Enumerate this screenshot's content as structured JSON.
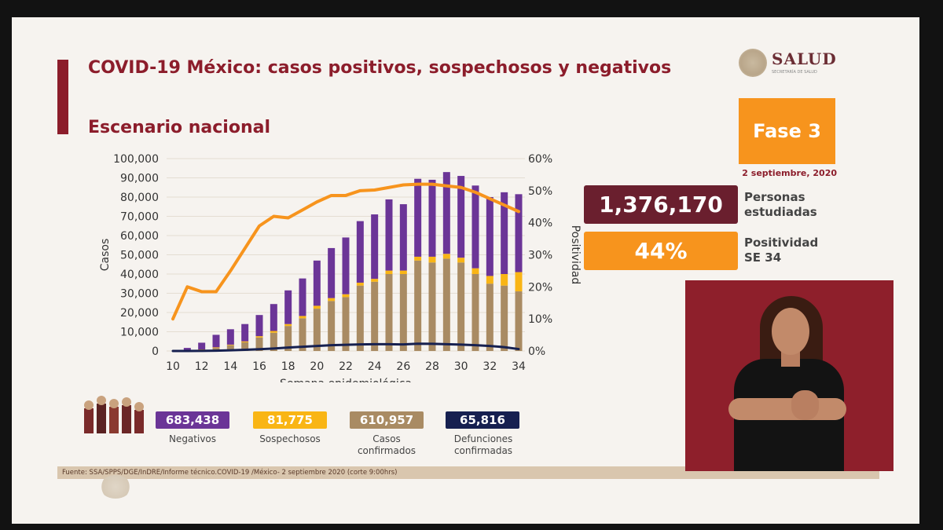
{
  "title": "COVID-19 México: casos positivos, sospechosos y negativos",
  "subtitle": "Escenario nacional",
  "logo": {
    "name": "SALUD",
    "tagline": "SECRETARÍA DE SALUD"
  },
  "fase": "Fase 3",
  "fecha": "2 septiembre, 2020",
  "stats": [
    {
      "value": "1,376,170",
      "label_line1": "Personas",
      "label_line2": "estudiadas",
      "color": "#6a1f2e"
    },
    {
      "value": "44%",
      "label_line1": "Positividad",
      "label_line2": "SE 34",
      "color": "#f7941d"
    }
  ],
  "legend": [
    {
      "value": "683,438",
      "label_line1": "Negativos",
      "label_line2": "",
      "color": "#6b3597"
    },
    {
      "value": "81,775",
      "label_line1": "Sospechosos",
      "label_line2": "",
      "color": "#f9b515"
    },
    {
      "value": "610,957",
      "label_line1": "Casos",
      "label_line2": "confirmados",
      "color": "#a98b63"
    },
    {
      "value": "65,816",
      "label_line1": "Defunciones",
      "label_line2": "confirmadas",
      "color": "#162050"
    }
  ],
  "source": "Fuente: SSA/SPPS/DGE/InDRE/Informe técnico.COVID-19 /México- 2 septiembre 2020 (corte 9:00hrs)",
  "chart_data": {
    "type": "bar",
    "xlabel": "Semana epidemiológica",
    "ylabel": "Casos",
    "y2label": "Positividad",
    "ylim": [
      0,
      100000
    ],
    "y2lim": [
      0,
      60
    ],
    "yticks": [
      "0",
      "10,000",
      "20,000",
      "30,000",
      "40,000",
      "50,000",
      "60,000",
      "70,000",
      "80,000",
      "90,000",
      "100,000"
    ],
    "y2ticks": [
      "0%",
      "10%",
      "20%",
      "30%",
      "40%",
      "50%",
      "60%"
    ],
    "xtick_labels": [
      "10",
      "12",
      "14",
      "16",
      "18",
      "20",
      "22",
      "24",
      "26",
      "28",
      "30",
      "32",
      "34"
    ],
    "weeks": [
      10,
      11,
      12,
      13,
      14,
      15,
      16,
      17,
      18,
      19,
      20,
      21,
      22,
      23,
      24,
      25,
      26,
      27,
      28,
      29,
      30,
      31,
      32,
      33,
      34
    ],
    "stacked": true,
    "series": [
      {
        "name": "Casos confirmados",
        "color": "#a98b63",
        "values": [
          0,
          300,
          600,
          1600,
          3000,
          4500,
          7000,
          9500,
          13000,
          17000,
          22000,
          26000,
          28000,
          34000,
          36000,
          40000,
          40000,
          47000,
          46000,
          48000,
          46000,
          40000,
          35000,
          34000,
          31000
        ]
      },
      {
        "name": "Sospechosos",
        "color": "#f9b515",
        "values": [
          0,
          100,
          200,
          300,
          300,
          500,
          700,
          900,
          1000,
          1200,
          1500,
          1500,
          1500,
          1500,
          1500,
          1800,
          1800,
          2000,
          3000,
          2500,
          2500,
          3000,
          4000,
          6000,
          10000
        ]
      },
      {
        "name": "Negativos",
        "color": "#6b3597",
        "values": [
          0,
          1200,
          3500,
          6500,
          8000,
          9000,
          11000,
          14000,
          17500,
          19500,
          23500,
          26000,
          29500,
          32000,
          33500,
          37000,
          34500,
          40500,
          40000,
          42500,
          42500,
          43000,
          41000,
          42500,
          40500
        ]
      },
      {
        "name": "Defunciones confirmadas",
        "type": "line",
        "color": "#162050",
        "values": [
          0,
          20,
          60,
          150,
          350,
          600,
          900,
          1300,
          1800,
          2200,
          2600,
          3000,
          3200,
          3400,
          3500,
          3500,
          3400,
          3800,
          3700,
          3500,
          3300,
          3000,
          2600,
          2000,
          1000
        ]
      },
      {
        "name": "Positividad",
        "type": "line",
        "axis": "right",
        "color": "#f7941d",
        "values": [
          10,
          20,
          18.5,
          18.5,
          25,
          32,
          39,
          42,
          41.5,
          44,
          46.5,
          48.5,
          48.5,
          50,
          50.2,
          51,
          51.8,
          52,
          52,
          51.5,
          51,
          49.5,
          47.5,
          45.5,
          43.5
        ]
      }
    ]
  }
}
